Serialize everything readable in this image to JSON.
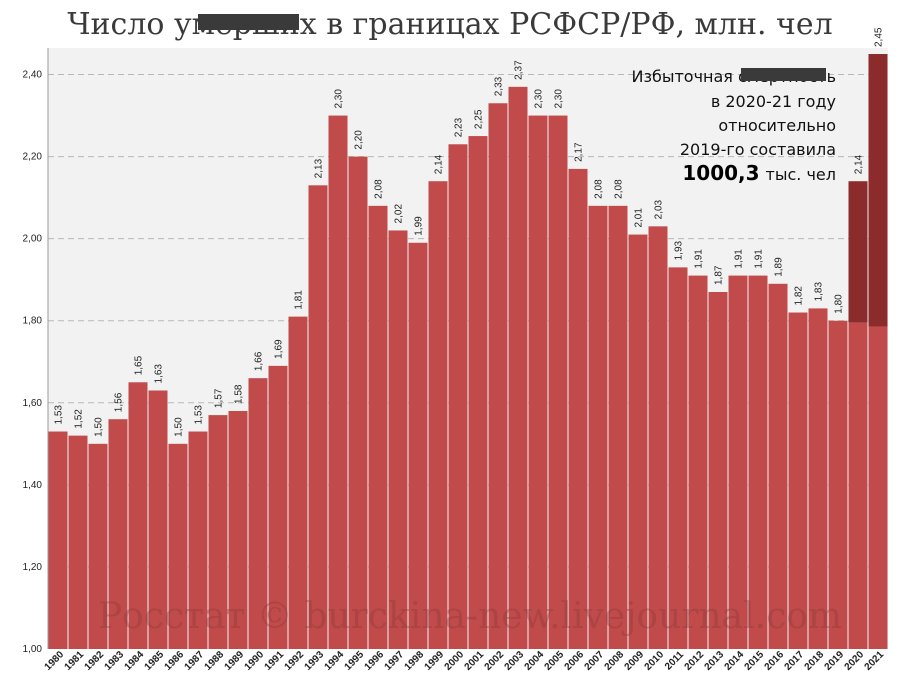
{
  "chart_data": {
    "type": "bar",
    "title": "Число умерших в границах РСФСР/РФ, млн. чел",
    "categories": [
      "1980",
      "1981",
      "1982",
      "1983",
      "1984",
      "1985",
      "1986",
      "1987",
      "1988",
      "1989",
      "1990",
      "1991",
      "1992",
      "1993",
      "1994",
      "1995",
      "1996",
      "1997",
      "1998",
      "1999",
      "2000",
      "2001",
      "2002",
      "2003",
      "2004",
      "2005",
      "2006",
      "2007",
      "2008",
      "2009",
      "2010",
      "2011",
      "2012",
      "2013",
      "2014",
      "2015",
      "2016",
      "2017",
      "2018",
      "2019",
      "2020",
      "2021"
    ],
    "values": [
      1.53,
      1.52,
      1.5,
      1.56,
      1.65,
      1.63,
      1.5,
      1.53,
      1.57,
      1.58,
      1.66,
      1.69,
      1.81,
      2.13,
      2.3,
      2.2,
      2.08,
      2.02,
      1.99,
      2.14,
      2.23,
      2.25,
      2.33,
      2.37,
      2.3,
      2.3,
      2.17,
      2.08,
      2.08,
      2.01,
      2.03,
      1.93,
      1.91,
      1.87,
      1.91,
      1.91,
      1.89,
      1.82,
      1.83,
      1.8,
      2.14,
      2.45
    ],
    "value_labels": [
      "1,53",
      "1,52",
      "1,50",
      "1,56",
      "1,65",
      "1,63",
      "1,50",
      "1,53",
      "1,57",
      "1,58",
      "1,66",
      "1,69",
      "1,81",
      "2,13",
      "2,30",
      "2,20",
      "2,08",
      "2,02",
      "1,99",
      "2,14",
      "2,23",
      "2,25",
      "2,33",
      "2,37",
      "2,30",
      "2,30",
      "2,17",
      "2,08",
      "2,08",
      "2,01",
      "2,03",
      "1,93",
      "1,91",
      "1,87",
      "1,91",
      "1,91",
      "1,89",
      "1,82",
      "1,83",
      "1,80",
      "2,14",
      "2,45"
    ],
    "baseline_2020_2021": [
      1.795,
      1.786
    ],
    "ylim": [
      1.0,
      2.45
    ],
    "yticks": [
      1.0,
      1.2,
      1.4,
      1.6,
      1.8,
      2.0,
      2.2,
      2.4
    ],
    "ytick_labels": [
      "1,00",
      "1,20",
      "1,40",
      "1,60",
      "1,80",
      "2,00",
      "2,20",
      "2,40"
    ],
    "grid": true,
    "xlabel": "",
    "ylabel": "",
    "colors": {
      "bar": "#c14a4a",
      "excess": "#8b2b2b",
      "plot_bg": "#f2f2f2",
      "grid": "#b8b8b8"
    },
    "annotation": {
      "lines": [
        "Избыточная смертность",
        "в 2020-21 году",
        "относительно",
        "2019-го составила"
      ],
      "value": "1000,3",
      "unit": "тыс. чел"
    },
    "watermark": "Росстат © burckina-new.livejournal.com"
  }
}
